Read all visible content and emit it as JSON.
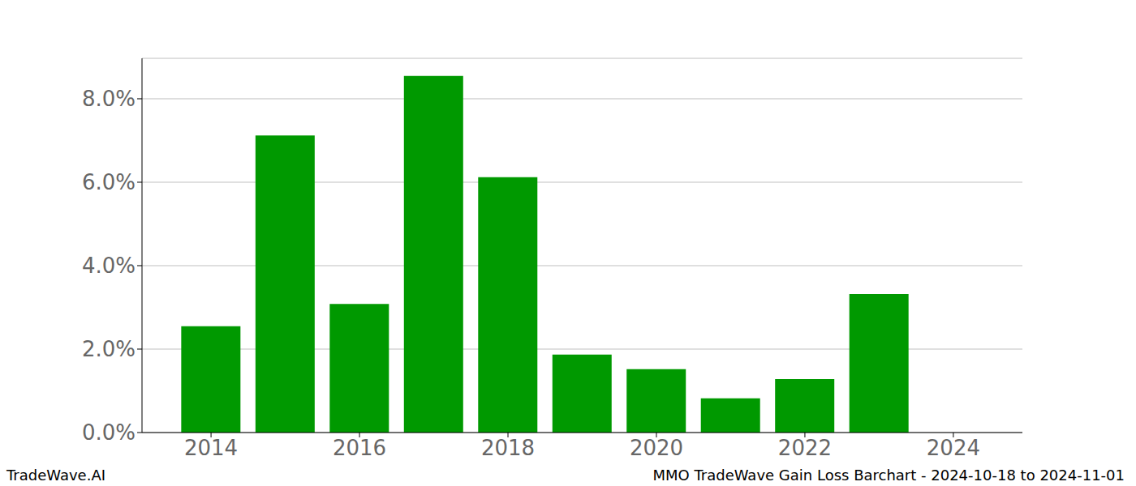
{
  "chart_data": {
    "type": "bar",
    "title": "MMO TradeWave Gain Loss Barchart - 2024-10-18 to 2024-11-01",
    "annotations": [
      "TradeWave.AI"
    ],
    "x": [
      2014,
      2015,
      2016,
      2017,
      2018,
      2019,
      2020,
      2021,
      2022,
      2023
    ],
    "values": [
      2.55,
      7.12,
      3.08,
      8.55,
      6.12,
      1.87,
      1.52,
      0.82,
      1.28,
      3.32
    ],
    "color": "#009900",
    "xlim": [
      2013.07,
      2024.93
    ],
    "xticks": [
      2014,
      2016,
      2018,
      2020,
      2022,
      2024
    ],
    "ylim": [
      0,
      8.97
    ],
    "yticks": [
      {
        "value": 0,
        "label": "0.0%"
      },
      {
        "value": 2,
        "label": "2.0%"
      },
      {
        "value": 4,
        "label": "4.0%"
      },
      {
        "value": 6,
        "label": "6.0%"
      },
      {
        "value": 8,
        "label": "8.0%"
      }
    ],
    "grid": true
  }
}
